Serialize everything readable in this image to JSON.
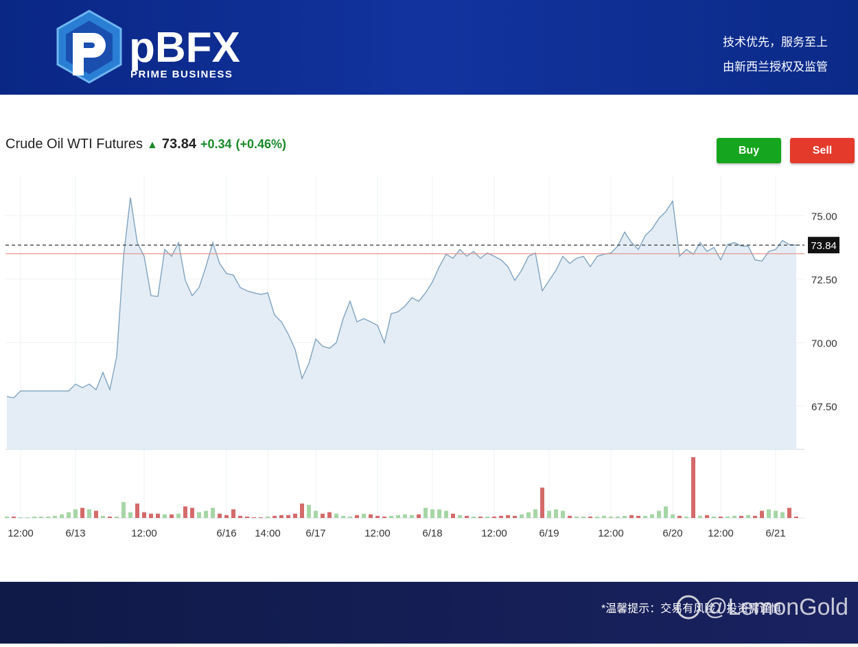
{
  "header": {
    "brand": "pBFX",
    "tagline": "PRIME BUSINESS",
    "slogan": "技术优先，服务至上",
    "license": "由新西兰授权及监管"
  },
  "quote": {
    "name": "Crude Oil WTI Futures",
    "change": "+0.34",
    "change_pct": "(+0.46%)",
    "buy": "Buy",
    "sell": "Sell"
  },
  "chart_data": {
    "type": "area",
    "categories": [
      null,
      null,
      "12:00",
      null,
      null,
      null,
      null,
      null,
      null,
      null,
      "6/13",
      null,
      null,
      null,
      null,
      null,
      null,
      null,
      null,
      null,
      "12:00",
      null,
      null,
      null,
      null,
      null,
      null,
      null,
      null,
      null,
      null,
      null,
      "6/16",
      null,
      null,
      null,
      null,
      null,
      "14:00",
      null,
      null,
      null,
      null,
      null,
      null,
      "6/17",
      null,
      null,
      null,
      null,
      null,
      null,
      null,
      null,
      "12:00",
      null,
      null,
      null,
      null,
      null,
      null,
      null,
      "6/18",
      null,
      null,
      null,
      null,
      null,
      null,
      null,
      null,
      "12:00",
      null,
      null,
      null,
      null,
      null,
      null,
      null,
      "6/19",
      null,
      null,
      null,
      null,
      null,
      null,
      null,
      null,
      "12:00",
      null,
      null,
      null,
      null,
      null,
      null,
      null,
      null,
      "6/20",
      null,
      null,
      null,
      null,
      null,
      null,
      "12:00",
      null,
      null,
      null,
      null,
      null,
      null,
      null,
      "6/21",
      null,
      null,
      null
    ],
    "values": [
      67.88,
      67.83,
      68.1,
      68.1,
      68.1,
      68.1,
      68.1,
      68.1,
      68.1,
      68.1,
      68.37,
      68.23,
      68.37,
      68.15,
      68.83,
      68.15,
      69.46,
      73.4,
      75.71,
      73.94,
      73.4,
      71.85,
      71.82,
      73.67,
      73.4,
      73.94,
      72.45,
      71.85,
      72.17,
      72.99,
      73.94,
      73.12,
      72.72,
      72.66,
      72.17,
      72.04,
      71.96,
      71.9,
      71.96,
      71.09,
      70.82,
      70.33,
      69.73,
      68.59,
      69.18,
      70.14,
      69.86,
      69.78,
      70.0,
      70.95,
      71.63,
      70.82,
      70.95,
      70.82,
      70.68,
      70.0,
      71.14,
      71.22,
      71.44,
      71.77,
      71.63,
      71.96,
      72.39,
      72.99,
      73.48,
      73.32,
      73.67,
      73.4,
      73.59,
      73.32,
      73.53,
      73.4,
      73.26,
      72.99,
      72.45,
      72.85,
      73.4,
      73.53,
      72.04,
      72.45,
      72.85,
      73.4,
      73.12,
      73.32,
      73.4,
      72.99,
      73.4,
      73.48,
      73.53,
      73.8,
      74.35,
      73.94,
      73.67,
      74.21,
      74.48,
      74.89,
      75.16,
      75.57,
      73.4,
      73.67,
      73.48,
      73.94,
      73.59,
      73.75,
      73.26,
      73.86,
      73.94,
      73.8,
      73.8,
      73.26,
      73.21,
      73.59,
      73.67,
      74.02,
      73.86,
      73.84
    ],
    "line_color": "#7fa3c0",
    "fill_color": "#e4edf5",
    "last_price": 73.84,
    "prev_close": 73.5,
    "prev_close_color": "#e58a80",
    "ylim": [
      65.8,
      76.6
    ],
    "yticks": [
      {
        "value": 67.5,
        "label": "67.50"
      },
      {
        "value": 70,
        "label": "70.00"
      },
      {
        "value": 72.5,
        "label": "72.50"
      },
      {
        "value": 75,
        "label": "75.00"
      }
    ],
    "grid": true,
    "volume": {
      "ylim": [
        0,
        90
      ],
      "up_color": "#a6d6a6",
      "down_color": "#d46a6a",
      "values": [
        2,
        2,
        1,
        1,
        2,
        2,
        2,
        3,
        5,
        8,
        12,
        14,
        12,
        10,
        3,
        2,
        2,
        22,
        8,
        20,
        8,
        6,
        6,
        5,
        5,
        6,
        16,
        14,
        8,
        10,
        14,
        6,
        4,
        12,
        3,
        2,
        1,
        1,
        2,
        3,
        4,
        4,
        6,
        20,
        18,
        10,
        6,
        8,
        6,
        3,
        2,
        4,
        6,
        5,
        3,
        2,
        3,
        4,
        5,
        4,
        5,
        14,
        12,
        12,
        10,
        6,
        4,
        3,
        2,
        2,
        2,
        2,
        3,
        4,
        3,
        5,
        8,
        12,
        42,
        10,
        12,
        10,
        3,
        2,
        2,
        2,
        2,
        3,
        2,
        2,
        3,
        4,
        3,
        3,
        5,
        10,
        16,
        5,
        3,
        2,
        84,
        3,
        4,
        2,
        2,
        2,
        3,
        3,
        4,
        3,
        10,
        12,
        10,
        8,
        14,
        2
      ]
    }
  },
  "footer": {
    "notice": "*温馨提示：交易有风险，投资需谨慎",
    "watermark": "@LemonGold"
  }
}
